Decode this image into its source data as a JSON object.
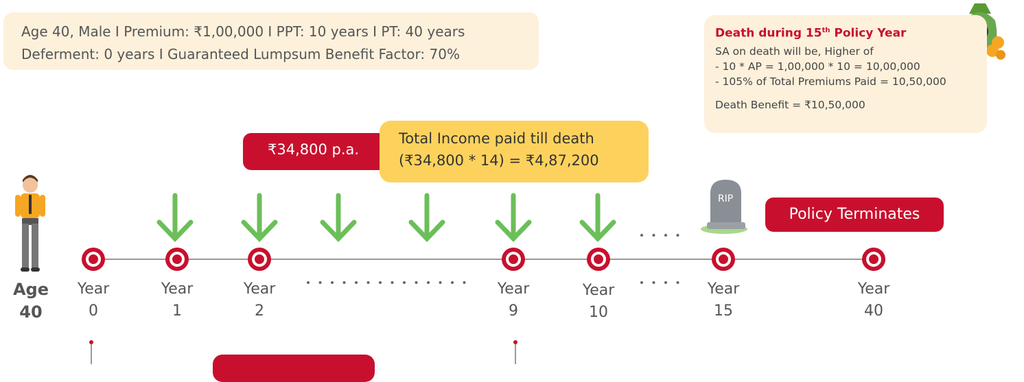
{
  "info": {
    "lines": [
      "Age 40, Male  I  Premium: ₹1,00,000  I  PPT: 10 years  I  PT: 40 years",
      "Deferment: 0 years  I  Guaranteed Lumpsum Benefit Factor: 70%"
    ]
  },
  "death": {
    "title_pre": "Death during 15",
    "title_sup": "th",
    "title_post": " Policy Year",
    "lines": [
      "SA on death will be, Higher of",
      "- 10 * AP = 1,00,000 * 10 = 10,00,000",
      "- 105% of Total Premiums Paid = 10,50,000"
    ],
    "benefit": "Death Benefit = ₹10,50,000"
  },
  "income_tag": "₹34,800 p.a.",
  "total_income": [
    "Total Income paid till death",
    "(₹34,800 * 14) = ₹4,87,200"
  ],
  "tombstone": "RIP",
  "terminates": "Policy Terminates",
  "age": [
    "Age",
    "40"
  ],
  "timeline": [
    {
      "label": "Year",
      "number": "0"
    },
    {
      "label": "Year",
      "number": "1"
    },
    {
      "label": "Year",
      "number": "2"
    },
    {
      "label": "Year",
      "number": "9"
    },
    {
      "label": "Year",
      "number": "10"
    },
    {
      "label": "Year",
      "number": "15"
    },
    {
      "label": "Year",
      "number": "40"
    }
  ]
}
